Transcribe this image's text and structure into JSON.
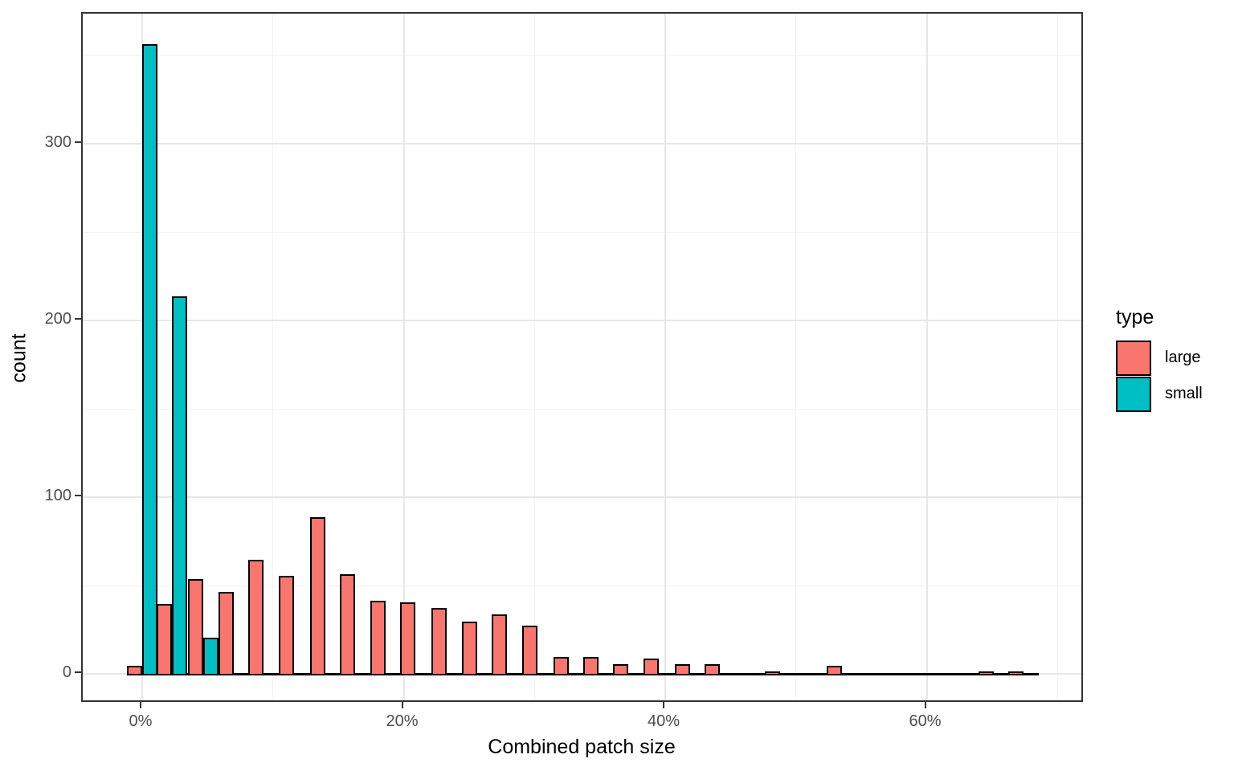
{
  "figure": {
    "x_axis": {
      "title": "Combined patch size",
      "tick_labels": [
        "0%",
        "20%",
        "40%",
        "60%"
      ],
      "tick_values": [
        0,
        20,
        40,
        60
      ],
      "minor_values": [
        10,
        30,
        50,
        70
      ]
    },
    "y_axis": {
      "title": "count",
      "tick_labels": [
        "0",
        "100",
        "200",
        "300"
      ],
      "tick_values": [
        0,
        100,
        200,
        300
      ],
      "minor_values": [
        50,
        150,
        250,
        350
      ]
    },
    "legend": {
      "title": "type",
      "entries": [
        {
          "label": "large",
          "color": "#F8766D"
        },
        {
          "label": "small",
          "color": "#00BFC4"
        }
      ]
    }
  },
  "chart_data": {
    "type": "bar",
    "subtype": "dodged-histogram",
    "title": "",
    "xlabel": "Combined patch size",
    "ylabel": "count",
    "x_unit": "percent",
    "bin_width_pct": 2.33,
    "x": [
      0,
      2.3,
      4.7,
      7.0,
      9.3,
      11.6,
      14.0,
      16.3,
      18.6,
      20.9,
      23.3,
      25.6,
      27.9,
      30.2,
      32.6,
      34.9,
      37.2,
      39.5,
      41.9,
      44.2,
      46.5,
      48.8,
      51.2,
      53.5,
      55.8,
      58.1,
      60.5,
      62.8,
      65.1,
      67.4
    ],
    "series": [
      {
        "name": "large",
        "color": "#F8766D",
        "values": [
          4,
          39,
          53,
          46,
          64,
          55,
          88,
          56,
          41,
          40,
          37,
          29,
          33,
          27,
          9,
          9,
          5,
          8,
          5,
          5,
          0,
          1,
          0,
          4,
          0,
          0,
          0,
          0,
          1,
          1
        ]
      },
      {
        "name": "small",
        "color": "#00BFC4",
        "values": [
          356,
          213,
          20,
          0,
          0,
          0,
          0,
          0,
          0,
          0,
          0,
          0,
          0,
          0,
          0,
          0,
          0,
          0,
          0,
          0,
          0,
          0,
          0,
          0,
          0,
          0,
          0,
          0,
          0,
          0
        ]
      }
    ],
    "xlim": [
      -4.5,
      72
    ],
    "ylim": [
      0,
      373
    ],
    "grid": true,
    "legend_position": "right",
    "legend_title": "type",
    "theme": "bw",
    "bar_stroke": "#000000"
  }
}
